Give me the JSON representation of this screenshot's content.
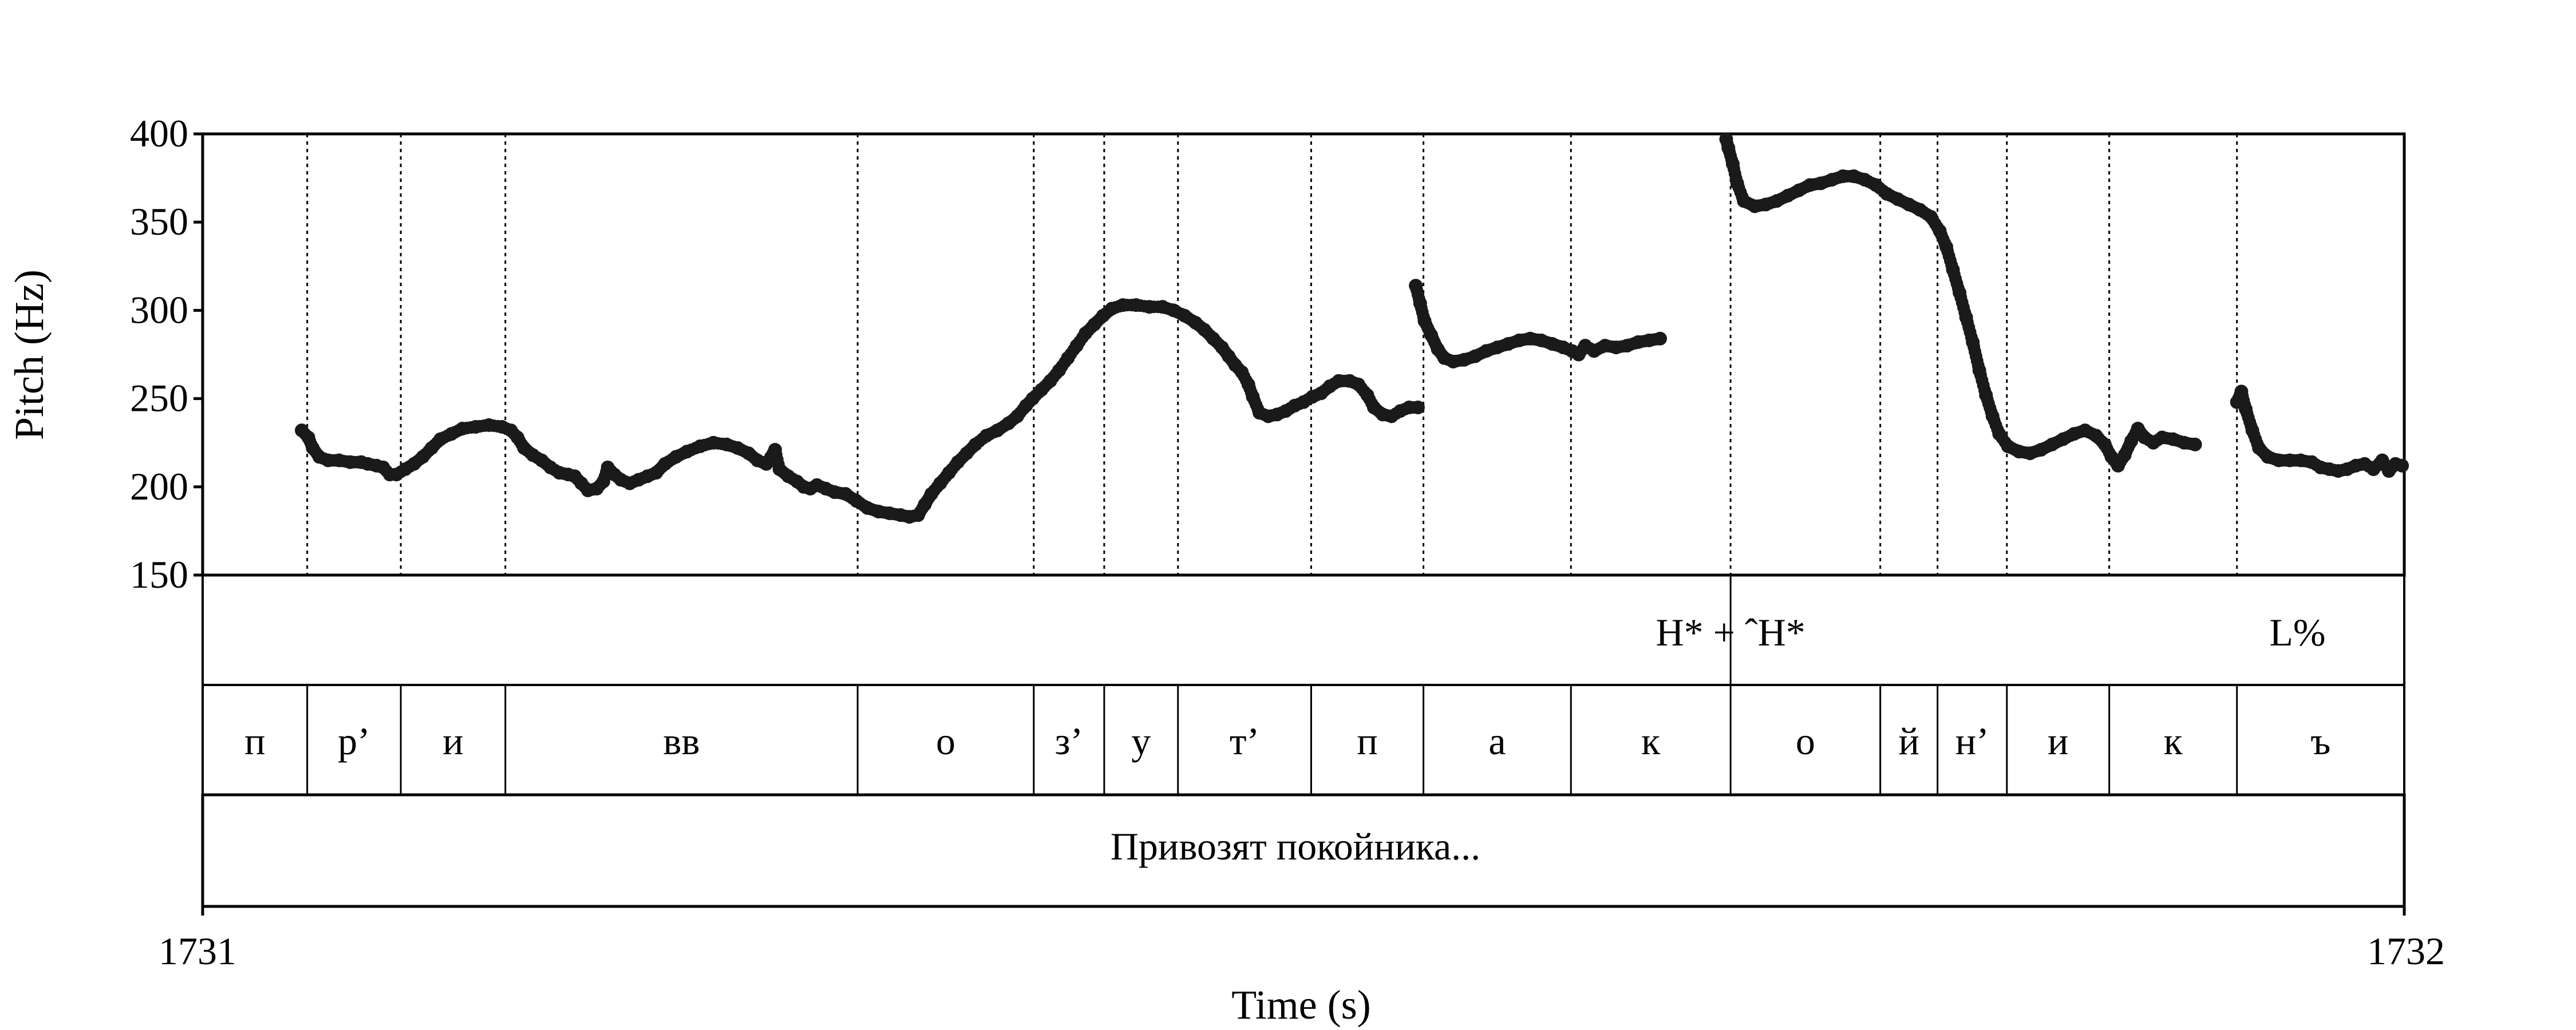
{
  "chart_data": {
    "type": "scatter",
    "title": "",
    "xlabel": "Time (s)",
    "ylabel": "Pitch (Hz)",
    "xlim": [
      1731,
      1732
    ],
    "ylim": [
      150,
      400
    ],
    "x_tick_labels": [
      "1731",
      "1732"
    ],
    "y_ticks": [
      150,
      200,
      250,
      300,
      350,
      400
    ],
    "y_tick_labels": [
      "150",
      "200",
      "250",
      "300",
      "350",
      "400"
    ],
    "grid": false,
    "point_color": "#1a1a1a",
    "tone_tier": {
      "boundaries": [
        1731.694
      ],
      "labels": [
        {
          "text": "H* + ˆH*",
          "t": 1731.694
        },
        {
          "text": "L%",
          "t": 1731.9515
        }
      ]
    },
    "segment_tier": {
      "boundaries": [
        1731.0475,
        1731.09,
        1731.1375,
        1731.2975,
        1731.3775,
        1731.4095,
        1731.443,
        1731.5035,
        1731.5545,
        1731.6215,
        1731.694,
        1731.762,
        1731.788,
        1731.8195,
        1731.866,
        1731.924
      ],
      "labels": [
        "п",
        "р’",
        "и",
        "вв",
        "о",
        "з’",
        "у",
        "т’",
        "п",
        "а",
        "к",
        "о",
        "й",
        "н’",
        "и",
        "к",
        "ъ"
      ]
    },
    "sentence_tier": {
      "text": "Привозят покойника..."
    },
    "series": [
      {
        "contours": [
          [
            [
              1731.045,
              232
            ],
            [
              1731.048,
              228
            ],
            [
              1731.05,
              222
            ],
            [
              1731.053,
              217
            ],
            [
              1731.057,
              215
            ],
            [
              1731.062,
              215
            ],
            [
              1731.067,
              214
            ],
            [
              1731.072,
              214
            ],
            [
              1731.075,
              213
            ],
            [
              1731.079,
              212
            ],
            [
              1731.082,
              211
            ],
            [
              1731.085,
              207
            ],
            [
              1731.088,
              207
            ],
            [
              1731.092,
              210
            ],
            [
              1731.096,
              213
            ],
            [
              1731.1,
              217
            ],
            [
              1731.104,
              222
            ],
            [
              1731.108,
              227
            ],
            [
              1731.113,
              230
            ],
            [
              1731.118,
              233
            ],
            [
              1731.124,
              234
            ],
            [
              1731.13,
              235
            ],
            [
              1731.136,
              234
            ],
            [
              1731.14,
              232
            ],
            [
              1731.143,
              228
            ],
            [
              1731.146,
              222
            ],
            [
              1731.15,
              218
            ],
            [
              1731.154,
              215
            ],
            [
              1731.158,
              211
            ],
            [
              1731.162,
              208
            ],
            [
              1731.166,
              207
            ],
            [
              1731.169,
              206
            ],
            [
              1731.172,
              202
            ],
            [
              1731.175,
              198
            ],
            [
              1731.179,
              199
            ],
            [
              1731.182,
              203
            ],
            [
              1731.184,
              211
            ],
            [
              1731.187,
              207
            ],
            [
              1731.19,
              204
            ],
            [
              1731.194,
              202
            ],
            [
              1731.198,
              204
            ],
            [
              1731.202,
              206
            ],
            [
              1731.206,
              208
            ],
            [
              1731.21,
              213
            ],
            [
              1731.215,
              217
            ],
            [
              1731.22,
              220
            ],
            [
              1731.226,
              223
            ],
            [
              1731.232,
              225
            ],
            [
              1731.238,
              224
            ],
            [
              1731.243,
              222
            ],
            [
              1731.248,
              219
            ],
            [
              1731.252,
              215
            ],
            [
              1731.256,
              213
            ],
            [
              1731.26,
              221
            ],
            [
              1731.262,
              210
            ],
            [
              1731.266,
              206
            ],
            [
              1731.27,
              203
            ],
            [
              1731.273,
              200
            ],
            [
              1731.276,
              199
            ],
            [
              1731.279,
              201
            ],
            [
              1731.283,
              199
            ],
            [
              1731.287,
              197
            ],
            [
              1731.292,
              196
            ],
            [
              1731.297,
              192
            ],
            [
              1731.302,
              188
            ],
            [
              1731.307,
              186
            ],
            [
              1731.312,
              185
            ],
            [
              1731.317,
              184
            ],
            [
              1731.321,
              183
            ],
            [
              1731.325,
              184
            ],
            [
              1731.328,
              190
            ],
            [
              1731.331,
              196
            ],
            [
              1731.335,
              202
            ],
            [
              1731.339,
              208
            ],
            [
              1731.343,
              214
            ],
            [
              1731.347,
              219
            ],
            [
              1731.351,
              224
            ],
            [
              1731.356,
              229
            ],
            [
              1731.361,
              232
            ],
            [
              1731.366,
              236
            ],
            [
              1731.37,
              240
            ],
            [
              1731.374,
              246
            ],
            [
              1731.377,
              250
            ],
            [
              1731.381,
              255
            ],
            [
              1731.385,
              260
            ],
            [
              1731.389,
              266
            ],
            [
              1731.393,
              273
            ],
            [
              1731.397,
              280
            ],
            [
              1731.401,
              287
            ],
            [
              1731.405,
              292
            ],
            [
              1731.409,
              297
            ],
            [
              1731.413,
              301
            ],
            [
              1731.418,
              303
            ],
            [
              1731.424,
              303
            ],
            [
              1731.43,
              302
            ],
            [
              1731.436,
              302
            ],
            [
              1731.441,
              300
            ],
            [
              1731.446,
              297
            ],
            [
              1731.451,
              293
            ],
            [
              1731.455,
              289
            ],
            [
              1731.459,
              284
            ],
            [
              1731.463,
              279
            ],
            [
              1731.466,
              274
            ],
            [
              1731.469,
              269
            ],
            [
              1731.472,
              265
            ],
            [
              1731.475,
              258
            ],
            [
              1731.477,
              251
            ],
            [
              1731.48,
              242
            ],
            [
              1731.484,
              240
            ],
            [
              1731.488,
              241
            ],
            [
              1731.492,
              243
            ],
            [
              1731.496,
              246
            ],
            [
              1731.5,
              248
            ],
            [
              1731.504,
              251
            ],
            [
              1731.508,
              253
            ],
            [
              1731.512,
              257
            ],
            [
              1731.516,
              260
            ],
            [
              1731.521,
              260
            ],
            [
              1731.525,
              258
            ],
            [
              1731.529,
              252
            ],
            [
              1731.532,
              245
            ],
            [
              1731.536,
              241
            ],
            [
              1731.54,
              240
            ],
            [
              1731.544,
              243
            ],
            [
              1731.548,
              245
            ],
            [
              1731.552,
              245
            ]
          ],
          [
            [
              1731.551,
              314
            ],
            [
              1731.553,
              304
            ],
            [
              1731.555,
              294
            ],
            [
              1731.558,
              286
            ],
            [
              1731.561,
              278
            ],
            [
              1731.564,
              273
            ],
            [
              1731.568,
              271
            ],
            [
              1731.573,
              272
            ],
            [
              1731.578,
              274
            ],
            [
              1731.583,
              277
            ],
            [
              1731.588,
              279
            ],
            [
              1731.593,
              281
            ],
            [
              1731.598,
              283
            ],
            [
              1731.603,
              284
            ],
            [
              1731.608,
              283
            ],
            [
              1731.613,
              281
            ],
            [
              1731.618,
              279
            ],
            [
              1731.622,
              277
            ],
            [
              1731.625,
              275
            ],
            [
              1731.628,
              280
            ],
            [
              1731.632,
              277
            ],
            [
              1731.637,
              280
            ],
            [
              1731.642,
              279
            ],
            [
              1731.647,
              280
            ],
            [
              1731.652,
              282
            ],
            [
              1731.657,
              283
            ],
            [
              1731.662,
              284
            ]
          ],
          [
            [
              1731.692,
              397
            ],
            [
              1731.693,
              392
            ],
            [
              1731.695,
              383
            ],
            [
              1731.697,
              372
            ],
            [
              1731.7,
              362
            ],
            [
              1731.705,
              359
            ],
            [
              1731.71,
              360
            ],
            [
              1731.715,
              362
            ],
            [
              1731.72,
              365
            ],
            [
              1731.725,
              368
            ],
            [
              1731.73,
              371
            ],
            [
              1731.735,
              372
            ],
            [
              1731.74,
              374
            ],
            [
              1731.745,
              376
            ],
            [
              1731.75,
              376
            ],
            [
              1731.755,
              374
            ],
            [
              1731.76,
              371
            ],
            [
              1731.765,
              366
            ],
            [
              1731.77,
              363
            ],
            [
              1731.775,
              360
            ],
            [
              1731.78,
              357
            ],
            [
              1731.785,
              353
            ],
            [
              1731.789,
              345
            ],
            [
              1731.792,
              336
            ],
            [
              1731.795,
              323
            ],
            [
              1731.798,
              310
            ],
            [
              1731.801,
              296
            ],
            [
              1731.804,
              282
            ],
            [
              1731.807,
              266
            ],
            [
              1731.81,
              252
            ],
            [
              1731.813,
              240
            ],
            [
              1731.816,
              230
            ],
            [
              1731.82,
              223
            ],
            [
              1731.825,
              220
            ],
            [
              1731.83,
              219
            ],
            [
              1731.835,
              221
            ],
            [
              1731.84,
              224
            ],
            [
              1731.845,
              227
            ],
            [
              1731.85,
              230
            ],
            [
              1731.855,
              232
            ],
            [
              1731.86,
              229
            ],
            [
              1731.864,
              224
            ],
            [
              1731.867,
              217
            ],
            [
              1731.87,
              212
            ],
            [
              1731.873,
              218
            ],
            [
              1731.876,
              226
            ],
            [
              1731.879,
              233
            ],
            [
              1731.882,
              228
            ],
            [
              1731.886,
              225
            ],
            [
              1731.89,
              228
            ],
            [
              1731.895,
              227
            ],
            [
              1731.9,
              225
            ],
            [
              1731.905,
              224
            ]
          ],
          [
            [
              1731.924,
              248
            ],
            [
              1731.926,
              254
            ],
            [
              1731.928,
              244
            ],
            [
              1731.931,
              232
            ],
            [
              1731.934,
              222
            ],
            [
              1731.938,
              217
            ],
            [
              1731.943,
              215
            ],
            [
              1731.948,
              215
            ],
            [
              1731.953,
              215
            ],
            [
              1731.958,
              214
            ],
            [
              1731.962,
              211
            ],
            [
              1731.966,
              210
            ],
            [
              1731.97,
              209
            ],
            [
              1731.974,
              210
            ],
            [
              1731.978,
              212
            ],
            [
              1731.982,
              213
            ],
            [
              1731.986,
              210
            ],
            [
              1731.99,
              215
            ],
            [
              1731.993,
              209
            ],
            [
              1731.996,
              213
            ],
            [
              1731.999,
              212
            ]
          ]
        ]
      }
    ]
  }
}
